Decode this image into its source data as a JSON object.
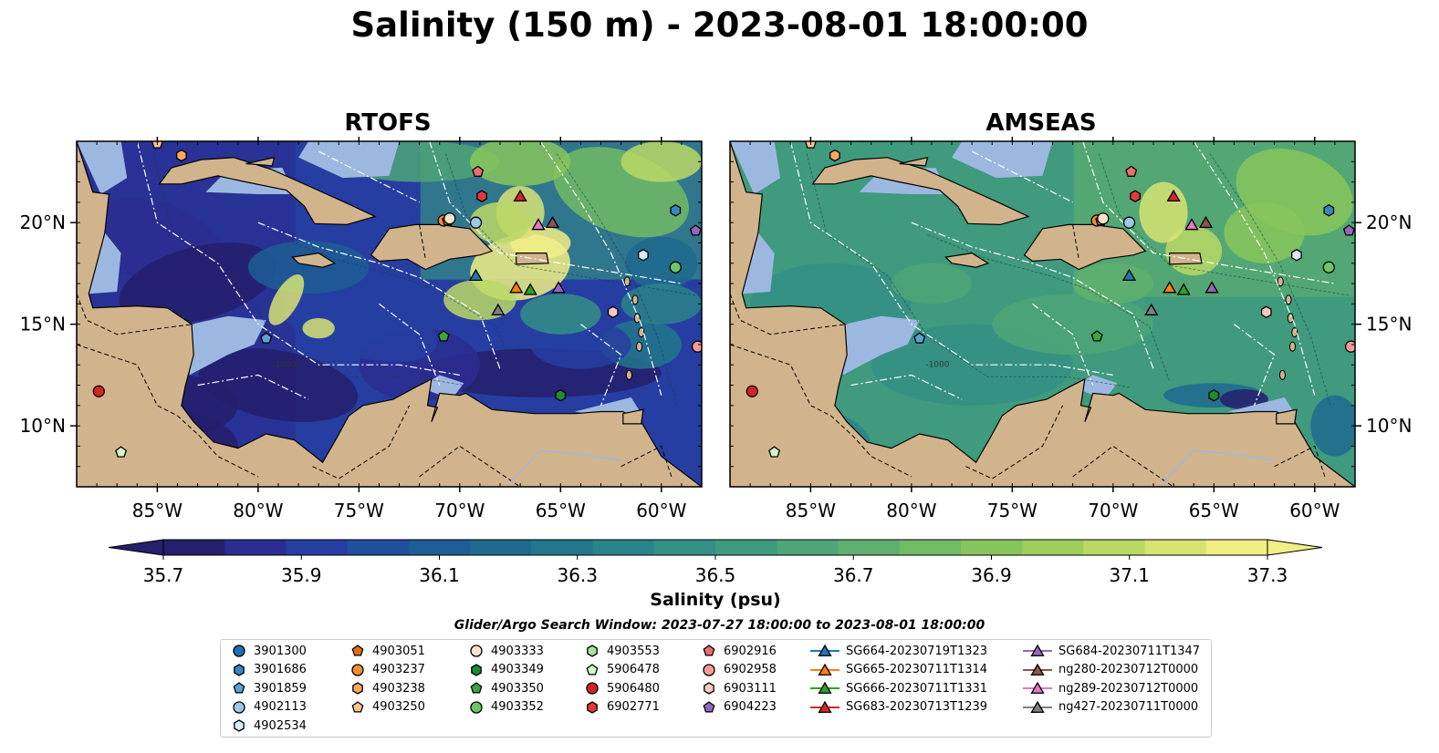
{
  "title": "Salinity (150 m) - 2023-08-01 18:00:00",
  "panels": [
    {
      "title": "RTOFS",
      "mode": "rtofs"
    },
    {
      "title": "AMSEAS",
      "mode": "amseas"
    }
  ],
  "map": {
    "lon_range": [
      -89,
      -58
    ],
    "lat_range": [
      7,
      24
    ],
    "lon_ticks": [
      {
        "value": -85,
        "label": "85°W"
      },
      {
        "value": -80,
        "label": "80°W"
      },
      {
        "value": -75,
        "label": "75°W"
      },
      {
        "value": -70,
        "label": "70°W"
      },
      {
        "value": -65,
        "label": "65°W"
      },
      {
        "value": -60,
        "label": "60°W"
      }
    ],
    "lat_ticks": [
      {
        "value": 20,
        "label": "20°N"
      },
      {
        "value": 15,
        "label": "15°N"
      },
      {
        "value": 10,
        "label": "10°N"
      }
    ],
    "contour_label": "-1000",
    "colors": {
      "land": "#d2b48c",
      "shallow": "#9db8e0",
      "ocean_low": "#2b1f6e",
      "ocean_high": "#fdf58a"
    }
  },
  "colorbar": {
    "label": "Salinity (psu)",
    "min": 35.7,
    "max": 37.3,
    "step": 0.1,
    "extend": "both",
    "tick_labels": [
      "35.7",
      "35.9",
      "36.1",
      "36.3",
      "36.5",
      "36.7",
      "36.9",
      "37.1",
      "37.3"
    ],
    "colors": [
      "#251f6c",
      "#2b2d92",
      "#263ea2",
      "#1f4f9e",
      "#1d5d94",
      "#1f6a8f",
      "#23778c",
      "#2b838a",
      "#348f85",
      "#3f9a7e",
      "#4ea577",
      "#5fb06e",
      "#71bb64",
      "#87c55c",
      "#9fce5c",
      "#bad865",
      "#d7e373",
      "#f1ee86"
    ]
  },
  "search_window": "Glider/Argo Search Window: 2023-07-27 18:00:00 to 2023-08-01 18:00:00",
  "legend": [
    {
      "label": "3901300",
      "marker": "circle",
      "color": "#1f6fb4"
    },
    {
      "label": "3901686",
      "marker": "hexagon",
      "color": "#3a86c4"
    },
    {
      "label": "3901859",
      "marker": "pentagon",
      "color": "#5f9fd4"
    },
    {
      "label": "4902113",
      "marker": "circle",
      "color": "#9ac8e8"
    },
    {
      "label": "4902534",
      "marker": "hexagon",
      "color": "#d8eaf7"
    },
    {
      "label": "4903051",
      "marker": "pentagon",
      "color": "#e66d0e"
    },
    {
      "label": "4903237",
      "marker": "circle",
      "color": "#f68c2f"
    },
    {
      "label": "4903238",
      "marker": "hexagon",
      "color": "#f9a863"
    },
    {
      "label": "4903250",
      "marker": "pentagon",
      "color": "#fcc590"
    },
    {
      "label": "4903333",
      "marker": "circle",
      "color": "#fde3c8"
    },
    {
      "label": "4903349",
      "marker": "hexagon",
      "color": "#1f8a2e"
    },
    {
      "label": "4903350",
      "marker": "pentagon",
      "color": "#3aa83c"
    },
    {
      "label": "4903352",
      "marker": "circle",
      "color": "#6cc66a"
    },
    {
      "label": "4903553",
      "marker": "hexagon",
      "color": "#a6e39f"
    },
    {
      "label": "5906478",
      "marker": "pentagon",
      "color": "#d4f7c8"
    },
    {
      "label": "5906480",
      "marker": "circle",
      "color": "#d32424"
    },
    {
      "label": "6902771",
      "marker": "hexagon",
      "color": "#e2393d"
    },
    {
      "label": "6902916",
      "marker": "pentagon",
      "color": "#ee6e70"
    },
    {
      "label": "6902958",
      "marker": "circle",
      "color": "#f59a98"
    },
    {
      "label": "6903111",
      "marker": "hexagon",
      "color": "#fbc7c4"
    },
    {
      "label": "6904223",
      "marker": "pentagon",
      "color": "#9467bd"
    },
    {
      "label": "SG664-20230719T1323",
      "marker": "triangle",
      "color": "#1f77b4",
      "line": true
    },
    {
      "label": "SG665-20230711T1314",
      "marker": "triangle",
      "color": "#ff7f0e",
      "line": true
    },
    {
      "label": "SG666-20230711T1331",
      "marker": "triangle",
      "color": "#2ca02c",
      "line": true
    },
    {
      "label": "SG683-20230713T1239",
      "marker": "triangle",
      "color": "#d62728",
      "line": true
    },
    {
      "label": "SG684-20230711T1347",
      "marker": "triangle",
      "color": "#9467bd",
      "line": true
    },
    {
      "label": "ng280-20230712T0000",
      "marker": "triangle",
      "color": "#8c564b",
      "line": true
    },
    {
      "label": "ng289-20230712T0000",
      "marker": "triangle",
      "color": "#e377c2",
      "line": true
    },
    {
      "label": "ng427-20230711T0000",
      "marker": "triangle",
      "color": "#7f7f7f",
      "line": true
    }
  ],
  "platforms": [
    {
      "id": "4903250",
      "lon": -85.0,
      "lat": 23.9,
      "marker": "pentagon",
      "color": "#fcc590"
    },
    {
      "id": "4903238",
      "lon": -83.8,
      "lat": 23.3,
      "marker": "hexagon",
      "color": "#f9a863"
    },
    {
      "id": "6902916",
      "lon": -69.1,
      "lat": 22.5,
      "marker": "pentagon",
      "color": "#ee6e70"
    },
    {
      "id": "6902771",
      "lon": -68.9,
      "lat": 21.3,
      "marker": "hexagon",
      "color": "#e2393d"
    },
    {
      "id": "SG683-20230713T1239",
      "lon": -67.0,
      "lat": 21.3,
      "marker": "triangle",
      "color": "#d62728"
    },
    {
      "id": "4903237",
      "lon": -70.8,
      "lat": 20.1,
      "marker": "circle",
      "color": "#f68c2f"
    },
    {
      "id": "4903051",
      "lon": -70.6,
      "lat": 20.1,
      "marker": "pentagon",
      "color": "#e66d0e"
    },
    {
      "id": "4903333",
      "lon": -70.5,
      "lat": 20.2,
      "marker": "circle",
      "color": "#fde3c8"
    },
    {
      "id": "4902113",
      "lon": -69.2,
      "lat": 20.0,
      "marker": "circle",
      "color": "#9ac8e8"
    },
    {
      "id": "ng289-20230712T0000",
      "lon": -66.1,
      "lat": 19.9,
      "marker": "triangle",
      "color": "#e377c2"
    },
    {
      "id": "ng280-20230712T0000",
      "lon": -65.4,
      "lat": 20.0,
      "marker": "triangle",
      "color": "#8c564b"
    },
    {
      "id": "3901686",
      "lon": -59.3,
      "lat": 20.6,
      "marker": "hexagon",
      "color": "#3a86c4"
    },
    {
      "id": "6904223",
      "lon": -58.3,
      "lat": 19.6,
      "marker": "pentagon",
      "color": "#9467bd"
    },
    {
      "id": "4902534",
      "lon": -60.9,
      "lat": 18.4,
      "marker": "hexagon",
      "color": "#d8eaf7"
    },
    {
      "id": "4903352",
      "lon": -59.3,
      "lat": 17.8,
      "marker": "circle",
      "color": "#6cc66a"
    },
    {
      "id": "SG664-20230719T1323",
      "lon": -69.2,
      "lat": 17.4,
      "marker": "triangle",
      "color": "#1f77b4"
    },
    {
      "id": "SG665-20230711T1314",
      "lon": -67.2,
      "lat": 16.8,
      "marker": "triangle",
      "color": "#ff7f0e"
    },
    {
      "id": "SG666-20230711T1331",
      "lon": -66.5,
      "lat": 16.7,
      "marker": "triangle",
      "color": "#2ca02c"
    },
    {
      "id": "SG684-20230711T1347",
      "lon": -65.1,
      "lat": 16.8,
      "marker": "triangle",
      "color": "#9467bd"
    },
    {
      "id": "ng427-20230711T0000",
      "lon": -68.1,
      "lat": 15.7,
      "marker": "triangle",
      "color": "#7f7f7f"
    },
    {
      "id": "6903111",
      "lon": -62.4,
      "lat": 15.6,
      "marker": "hexagon",
      "color": "#fbc7c4"
    },
    {
      "id": "4903350",
      "lon": -70.8,
      "lat": 14.4,
      "marker": "pentagon",
      "color": "#3aa83c"
    },
    {
      "id": "3901859",
      "lon": -79.6,
      "lat": 14.3,
      "marker": "pentagon",
      "color": "#5f9fd4"
    },
    {
      "id": "6902958",
      "lon": -58.2,
      "lat": 13.9,
      "marker": "circle",
      "color": "#f59a98"
    },
    {
      "id": "5906480",
      "lon": -87.9,
      "lat": 11.7,
      "marker": "circle",
      "color": "#d32424"
    },
    {
      "id": "4903349",
      "lon": -65.0,
      "lat": 11.5,
      "marker": "hexagon",
      "color": "#1f8a2e"
    },
    {
      "id": "5906478",
      "lon": -86.8,
      "lat": 8.7,
      "marker": "pentagon",
      "color": "#d4f7c8"
    }
  ],
  "chart_data": {
    "type": "heatmap",
    "title": "Salinity (150 m) - 2023-08-01 18:00:00",
    "subplots": [
      "RTOFS",
      "AMSEAS"
    ],
    "xlabel": "",
    "ylabel": "",
    "xlim": [
      -89,
      -58
    ],
    "ylim": [
      7,
      24
    ],
    "colorbar_label": "Salinity (psu)",
    "colorbar_range": [
      35.7,
      37.3
    ]
  }
}
